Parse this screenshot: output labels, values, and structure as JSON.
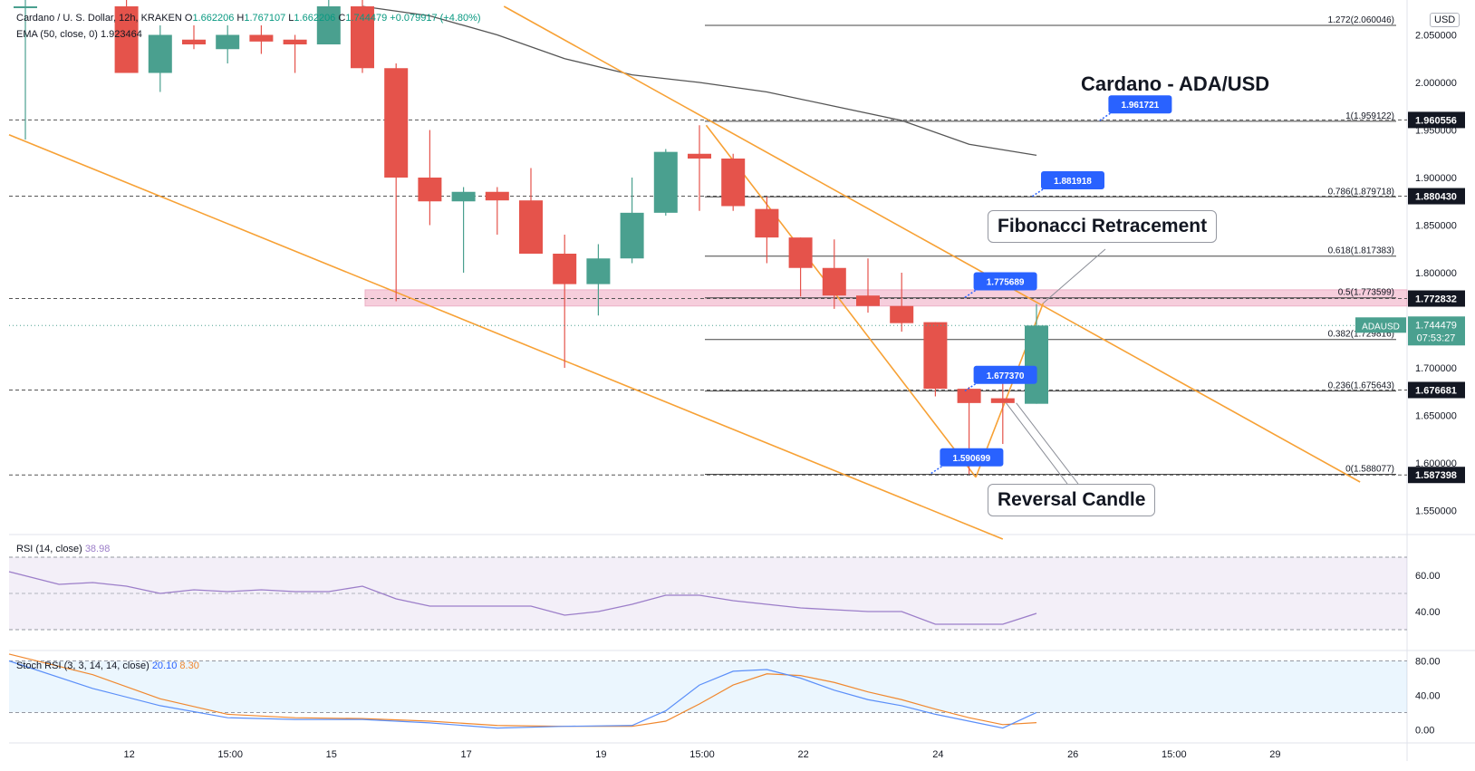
{
  "legend": {
    "symbol": "Cardano / U. S. Dollar, 12h, KRAKEN",
    "o_label": "O",
    "o_val": "1.662206",
    "h_label": "H",
    "h_val": "1.767107",
    "l_label": "L",
    "l_val": "1.662206",
    "c_label": "C",
    "c_val": "1.744479",
    "change": "+0.079917 (+4.80%)",
    "ema_label": "EMA (50, close, 0)",
    "ema_val": "1.923464"
  },
  "currency": "USD",
  "title": "Cardano - ADA/USD",
  "callouts": {
    "fib": "Fibonacci Retracement",
    "reversal": "Reversal Candle"
  },
  "rsi_legend": {
    "label": "RSI (14, close)",
    "value": "38.98"
  },
  "stoch_legend": {
    "label": "Stoch RSI (3, 3, 14, 14, close)",
    "k": "20.10",
    "d": "8.30"
  },
  "price_tag": {
    "name": "ADAUSD",
    "price": "1.744479",
    "countdown": "07:53:27"
  },
  "colors": {
    "up": "#26a69a",
    "up_fill": "#4aa08f",
    "down": "#e5534b",
    "trend": "#f7a135",
    "ema": "#555555",
    "rsi": "#9c7ec9",
    "stoch_k": "#5b8ff9",
    "stoch_d": "#f0882f",
    "zone": "#f5c6d6",
    "label_blue": "#2962ff",
    "tag_dark": "#131722",
    "tag_green": "#4aa08f"
  },
  "chart_data": {
    "type": "candlestick",
    "title": "Cardano - ADA/USD",
    "timeframe": "12h",
    "ylim": [
      1.52,
      2.08
    ],
    "x_labels": [
      "12",
      "15:00",
      "15",
      "17",
      "19",
      "15:00",
      "22",
      "24",
      "26",
      "15:00",
      "29"
    ],
    "x_label_index": [
      3,
      6,
      9,
      13,
      17,
      20,
      23,
      27,
      31,
      34,
      37
    ],
    "y_ticks": [
      "2.050000",
      "2.000000",
      "1.950000",
      "1.900000",
      "1.850000",
      "1.800000",
      "1.750000",
      "1.700000",
      "1.650000",
      "1.600000",
      "1.550000"
    ],
    "candles": [
      {
        "i": 0,
        "o": 2.08,
        "h": 2.09,
        "l": 1.94,
        "c": 2.08
      },
      {
        "i": 3,
        "o": 2.08,
        "h": 2.09,
        "l": 2.01,
        "c": 2.01
      },
      {
        "i": 4,
        "o": 2.01,
        "h": 2.06,
        "l": 1.99,
        "c": 2.05
      },
      {
        "i": 5,
        "o": 2.045,
        "h": 2.06,
        "l": 2.035,
        "c": 2.04
      },
      {
        "i": 6,
        "o": 2.035,
        "h": 2.06,
        "l": 2.02,
        "c": 2.05
      },
      {
        "i": 7,
        "o": 2.05,
        "h": 2.06,
        "l": 2.03,
        "c": 2.043
      },
      {
        "i": 8,
        "o": 2.045,
        "h": 2.05,
        "l": 2.01,
        "c": 2.04
      },
      {
        "i": 9,
        "o": 2.04,
        "h": 2.09,
        "l": 2.04,
        "c": 2.08
      },
      {
        "i": 10,
        "o": 2.08,
        "h": 2.09,
        "l": 2.01,
        "c": 2.015
      },
      {
        "i": 11,
        "o": 2.015,
        "h": 2.02,
        "l": 1.77,
        "c": 1.9
      },
      {
        "i": 12,
        "o": 1.9,
        "h": 1.95,
        "l": 1.85,
        "c": 1.875
      },
      {
        "i": 13,
        "o": 1.875,
        "h": 1.89,
        "l": 1.8,
        "c": 1.885
      },
      {
        "i": 14,
        "o": 1.885,
        "h": 1.89,
        "l": 1.84,
        "c": 1.876
      },
      {
        "i": 15,
        "o": 1.876,
        "h": 1.91,
        "l": 1.82,
        "c": 1.82
      },
      {
        "i": 16,
        "o": 1.82,
        "h": 1.84,
        "l": 1.7,
        "c": 1.788
      },
      {
        "i": 17,
        "o": 1.788,
        "h": 1.83,
        "l": 1.755,
        "c": 1.815
      },
      {
        "i": 18,
        "o": 1.815,
        "h": 1.9,
        "l": 1.81,
        "c": 1.863
      },
      {
        "i": 19,
        "o": 1.863,
        "h": 1.93,
        "l": 1.86,
        "c": 1.927
      },
      {
        "i": 20,
        "o": 1.925,
        "h": 1.955,
        "l": 1.865,
        "c": 1.92
      },
      {
        "i": 21,
        "o": 1.92,
        "h": 1.925,
        "l": 1.865,
        "c": 1.87
      },
      {
        "i": 22,
        "o": 1.867,
        "h": 1.88,
        "l": 1.81,
        "c": 1.837
      },
      {
        "i": 23,
        "o": 1.837,
        "h": 1.837,
        "l": 1.775,
        "c": 1.805
      },
      {
        "i": 24,
        "o": 1.805,
        "h": 1.835,
        "l": 1.762,
        "c": 1.776
      },
      {
        "i": 25,
        "o": 1.776,
        "h": 1.815,
        "l": 1.758,
        "c": 1.765
      },
      {
        "i": 26,
        "o": 1.765,
        "h": 1.8,
        "l": 1.738,
        "c": 1.747
      },
      {
        "i": 27,
        "o": 1.748,
        "h": 1.748,
        "l": 1.67,
        "c": 1.678
      },
      {
        "i": 28,
        "o": 1.678,
        "h": 1.68,
        "l": 1.588,
        "c": 1.663
      },
      {
        "i": 29,
        "o": 1.668,
        "h": 1.7,
        "l": 1.62,
        "c": 1.663
      },
      {
        "i": 30,
        "o": 1.662206,
        "h": 1.767107,
        "l": 1.662206,
        "c": 1.744479
      }
    ],
    "ema_series": [
      {
        "i": 10,
        "v": 2.08
      },
      {
        "i": 12,
        "v": 2.07
      },
      {
        "i": 14,
        "v": 2.05
      },
      {
        "i": 16,
        "v": 2.025
      },
      {
        "i": 18,
        "v": 2.008
      },
      {
        "i": 20,
        "v": 2.0
      },
      {
        "i": 22,
        "v": 1.99
      },
      {
        "i": 24,
        "v": 1.975
      },
      {
        "i": 26,
        "v": 1.96
      },
      {
        "i": 28,
        "v": 1.935
      },
      {
        "i": 30,
        "v": 1.923464
      }
    ],
    "fibonacci": [
      {
        "ratio": "1.272",
        "level": 2.060046,
        "label": "1.272(2.060046)"
      },
      {
        "ratio": "1",
        "level": 1.959122,
        "label": "1(1.959122)"
      },
      {
        "ratio": "0.786",
        "level": 1.879718,
        "label": "0.786(1.879718)"
      },
      {
        "ratio": "0.618",
        "level": 1.817383,
        "label": "0.618(1.817383)"
      },
      {
        "ratio": "0.5",
        "level": 1.773599,
        "label": "0.5(1.773599)"
      },
      {
        "ratio": "0.382",
        "level": 1.729815,
        "label": "0.382(1.729816)"
      },
      {
        "ratio": "0.236",
        "level": 1.675643,
        "label": "0.236(1.675643)"
      },
      {
        "ratio": "0",
        "level": 1.588077,
        "label": "0(1.588077)"
      }
    ],
    "horizontal_levels": [
      {
        "level": 1.960556,
        "label": "1.960556"
      },
      {
        "level": 1.88043,
        "label": "1.880430"
      },
      {
        "level": 1.772832,
        "label": "1.772832"
      },
      {
        "level": 1.676681,
        "label": "1.676681"
      },
      {
        "level": 1.587398,
        "label": "1.587398"
      }
    ],
    "blue_labels": [
      {
        "i": 32,
        "level": 1.961721,
        "label": "1.961721"
      },
      {
        "i": 30,
        "level": 1.881918,
        "label": "1.881918"
      },
      {
        "i": 28,
        "level": 1.775689,
        "label": "1.775689"
      },
      {
        "i": 28,
        "level": 1.67737,
        "label": "1.677370"
      },
      {
        "i": 27,
        "level": 1.590699,
        "label": "1.590699"
      }
    ],
    "supply_zone": [
      1.765,
      1.782
    ],
    "rsi": {
      "ylim": [
        20,
        80
      ],
      "ticks": [
        "60.00",
        "40.00"
      ],
      "bands": [
        70,
        30
      ],
      "values": [
        {
          "i": 0,
          "v": 62
        },
        {
          "i": 1,
          "v": 55
        },
        {
          "i": 2,
          "v": 56
        },
        {
          "i": 3,
          "v": 54
        },
        {
          "i": 4,
          "v": 50
        },
        {
          "i": 5,
          "v": 52
        },
        {
          "i": 6,
          "v": 51
        },
        {
          "i": 7,
          "v": 52
        },
        {
          "i": 8,
          "v": 51
        },
        {
          "i": 9,
          "v": 51
        },
        {
          "i": 10,
          "v": 54
        },
        {
          "i": 11,
          "v": 47
        },
        {
          "i": 12,
          "v": 43
        },
        {
          "i": 13,
          "v": 43
        },
        {
          "i": 14,
          "v": 43
        },
        {
          "i": 15,
          "v": 43
        },
        {
          "i": 16,
          "v": 38
        },
        {
          "i": 17,
          "v": 40
        },
        {
          "i": 18,
          "v": 44
        },
        {
          "i": 19,
          "v": 49
        },
        {
          "i": 20,
          "v": 49
        },
        {
          "i": 21,
          "v": 46
        },
        {
          "i": 22,
          "v": 44
        },
        {
          "i": 23,
          "v": 42
        },
        {
          "i": 24,
          "v": 41
        },
        {
          "i": 25,
          "v": 40
        },
        {
          "i": 26,
          "v": 40
        },
        {
          "i": 27,
          "v": 33
        },
        {
          "i": 28,
          "v": 33
        },
        {
          "i": 29,
          "v": 33
        },
        {
          "i": 30,
          "v": 38.98
        }
      ]
    },
    "stoch_rsi": {
      "ylim": [
        -10,
        90
      ],
      "ticks": [
        "80.00",
        "40.00",
        "0.00"
      ],
      "bands": [
        80,
        20
      ],
      "k": [
        {
          "i": 0,
          "v": 80
        },
        {
          "i": 2,
          "v": 48
        },
        {
          "i": 4,
          "v": 28
        },
        {
          "i": 6,
          "v": 14
        },
        {
          "i": 8,
          "v": 12
        },
        {
          "i": 10,
          "v": 12
        },
        {
          "i": 12,
          "v": 8
        },
        {
          "i": 14,
          "v": 2
        },
        {
          "i": 16,
          "v": 4
        },
        {
          "i": 18,
          "v": 5
        },
        {
          "i": 19,
          "v": 22
        },
        {
          "i": 20,
          "v": 52
        },
        {
          "i": 21,
          "v": 68
        },
        {
          "i": 22,
          "v": 70
        },
        {
          "i": 23,
          "v": 60
        },
        {
          "i": 24,
          "v": 46
        },
        {
          "i": 25,
          "v": 35
        },
        {
          "i": 26,
          "v": 28
        },
        {
          "i": 27,
          "v": 18
        },
        {
          "i": 28,
          "v": 10
        },
        {
          "i": 29,
          "v": 2
        },
        {
          "i": 30,
          "v": 20.1
        }
      ],
      "d": [
        {
          "i": 0,
          "v": 88
        },
        {
          "i": 2,
          "v": 64
        },
        {
          "i": 4,
          "v": 36
        },
        {
          "i": 6,
          "v": 18
        },
        {
          "i": 8,
          "v": 14
        },
        {
          "i": 10,
          "v": 13
        },
        {
          "i": 12,
          "v": 10
        },
        {
          "i": 14,
          "v": 5
        },
        {
          "i": 16,
          "v": 4
        },
        {
          "i": 18,
          "v": 4
        },
        {
          "i": 19,
          "v": 10
        },
        {
          "i": 20,
          "v": 30
        },
        {
          "i": 21,
          "v": 52
        },
        {
          "i": 22,
          "v": 65
        },
        {
          "i": 23,
          "v": 63
        },
        {
          "i": 24,
          "v": 55
        },
        {
          "i": 25,
          "v": 44
        },
        {
          "i": 26,
          "v": 35
        },
        {
          "i": 27,
          "v": 24
        },
        {
          "i": 28,
          "v": 14
        },
        {
          "i": 29,
          "v": 6
        },
        {
          "i": 30,
          "v": 8.3
        }
      ]
    }
  }
}
